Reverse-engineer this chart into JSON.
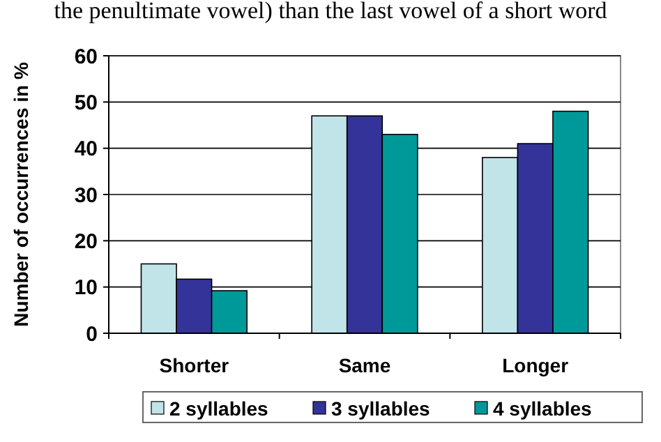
{
  "chart_data": {
    "type": "bar",
    "ylabel": "Number of occurrences in %",
    "categories": [
      "Shorter",
      "Same",
      "Longer"
    ],
    "series": [
      {
        "name": "2 syllables",
        "color": "#c0e4e8",
        "values": [
          15,
          47,
          38
        ]
      },
      {
        "name": "3 syllables",
        "color": "#333399",
        "values": [
          11.7,
          47,
          41
        ]
      },
      {
        "name": "4 syllables",
        "color": "#009999",
        "values": [
          9.2,
          43,
          48
        ]
      }
    ],
    "ylim": [
      0,
      60
    ],
    "yticks": [
      0,
      10,
      20,
      30,
      40,
      50,
      60
    ],
    "grid": "y",
    "legend": "bottom",
    "annotations": [
      "the penultimate vowel) than the last vowel of a short word"
    ]
  }
}
